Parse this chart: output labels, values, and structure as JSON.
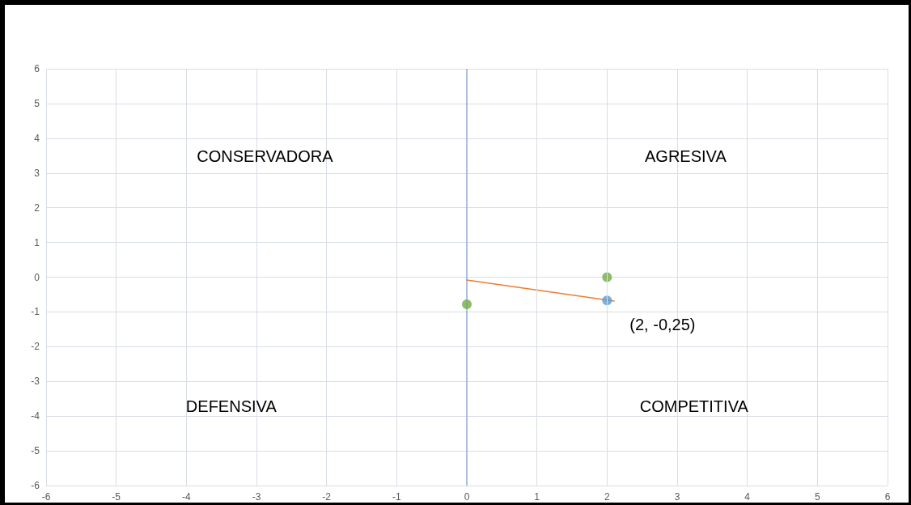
{
  "chart_data": {
    "type": "scatter",
    "xlim": [
      -6,
      6
    ],
    "ylim": [
      -6,
      6
    ],
    "xticks": [
      -6,
      -5,
      -4,
      -3,
      -2,
      -1,
      0,
      1,
      2,
      3,
      4,
      5,
      6
    ],
    "yticks": [
      -6,
      -5,
      -4,
      -3,
      -2,
      -1,
      0,
      1,
      2,
      3,
      4,
      5,
      6
    ],
    "grid": true,
    "marker": "circle",
    "ref_lines": [
      {
        "axis": "x",
        "value": 0,
        "color": "#8faadc"
      }
    ],
    "series": [
      {
        "type": "line",
        "color": "#ed7d31",
        "marker": "none",
        "x": [
          0,
          2.1
        ],
        "values": [
          -0.08,
          -0.69
        ]
      },
      {
        "color": "#70ad47",
        "x": [
          0,
          2
        ],
        "values": [
          -0.78,
          0
        ]
      },
      {
        "color": "#5b9bd5",
        "x": [
          2
        ],
        "values": [
          -0.67
        ]
      }
    ],
    "annotations": [
      "CONSERVADORA",
      "AGRESIVA",
      "DEFENSIVA",
      "COMPETITIVA",
      {
        "text": "(2, -0,25)",
        "x": 2,
        "y": -0.67
      }
    ]
  }
}
